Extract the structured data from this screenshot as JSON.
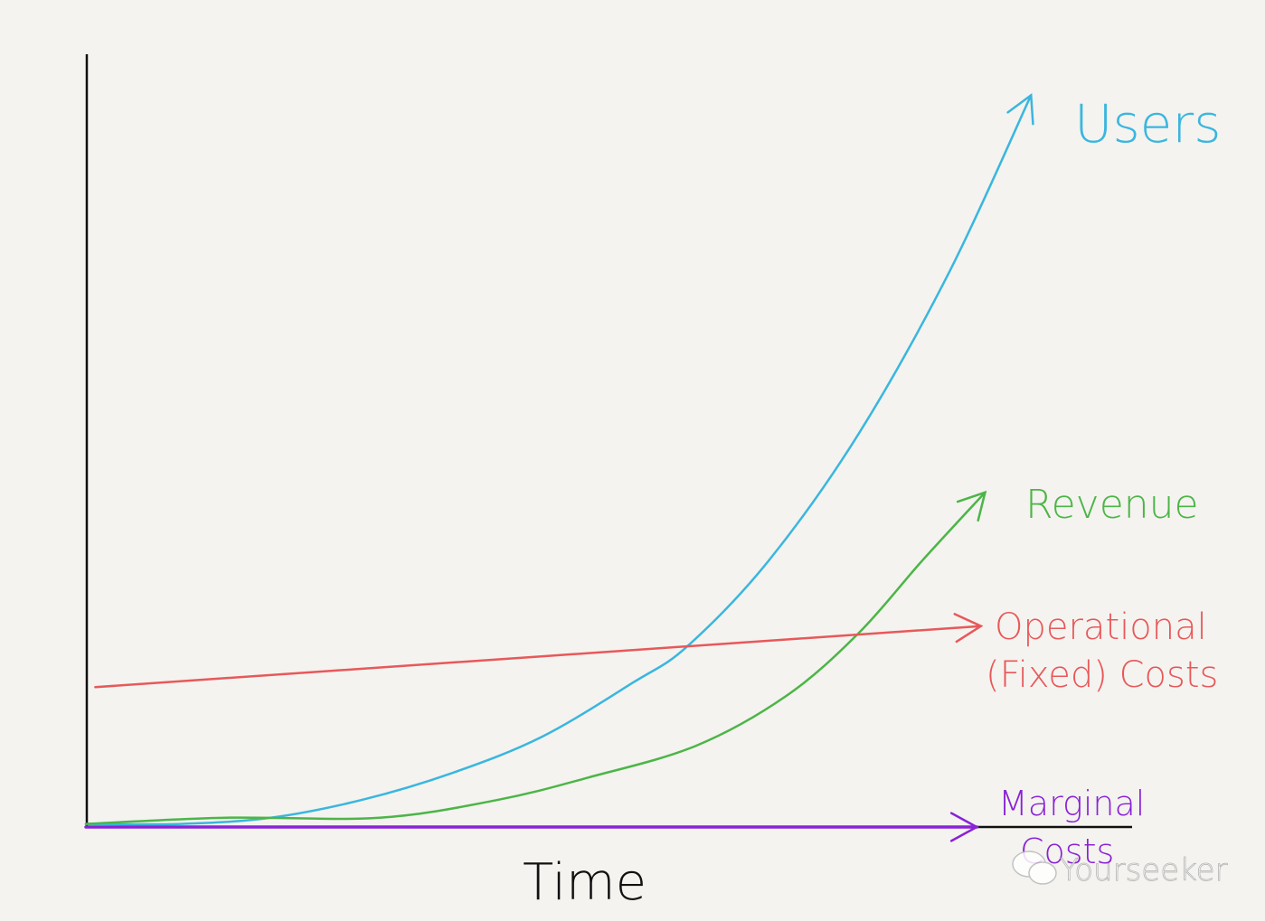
{
  "chart_data": {
    "type": "line",
    "title": "",
    "xlabel": "Time",
    "ylabel": "",
    "xlim": [
      0,
      100
    ],
    "ylim": [
      0,
      100
    ],
    "grid": false,
    "legend": "inline labels at line ends",
    "series": [
      {
        "name": "Users",
        "color": "#3ab6df",
        "x": [
          0,
          9.1,
          17.7,
          26.4,
          35.1,
          43.7,
          52.4,
          57.6,
          65.4,
          74.0,
          82.7,
          90.5
        ],
        "y": [
          0.4,
          0.4,
          1.2,
          3.5,
          7.0,
          11.7,
          18.7,
          23.4,
          34.5,
          50.9,
          71.9,
          94.7
        ]
      },
      {
        "name": "Revenue",
        "color": "#4cb548",
        "x": [
          0,
          13.4,
          28.1,
          39.4,
          48.1,
          58.4,
          67.1,
          74.0,
          80.1,
          86.1
        ],
        "y": [
          0.4,
          1.2,
          1.2,
          3.5,
          6.4,
          10.5,
          17.0,
          25.1,
          34.5,
          43.3
        ]
      },
      {
        "name": "Operational (Fixed) Costs",
        "name_lines": [
          "Operational",
          "(Fixed) Costs"
        ],
        "color": "#e8585a",
        "x": [
          0.9,
          85.7
        ],
        "y": [
          18.1,
          26.0
        ]
      },
      {
        "name": "Marginal Costs",
        "name_lines": [
          "Marginal",
          "Costs"
        ],
        "color": "#8a22d6",
        "x": [
          0,
          85.3
        ],
        "y": [
          0,
          0
        ]
      }
    ]
  },
  "watermark": "Yourseeker"
}
